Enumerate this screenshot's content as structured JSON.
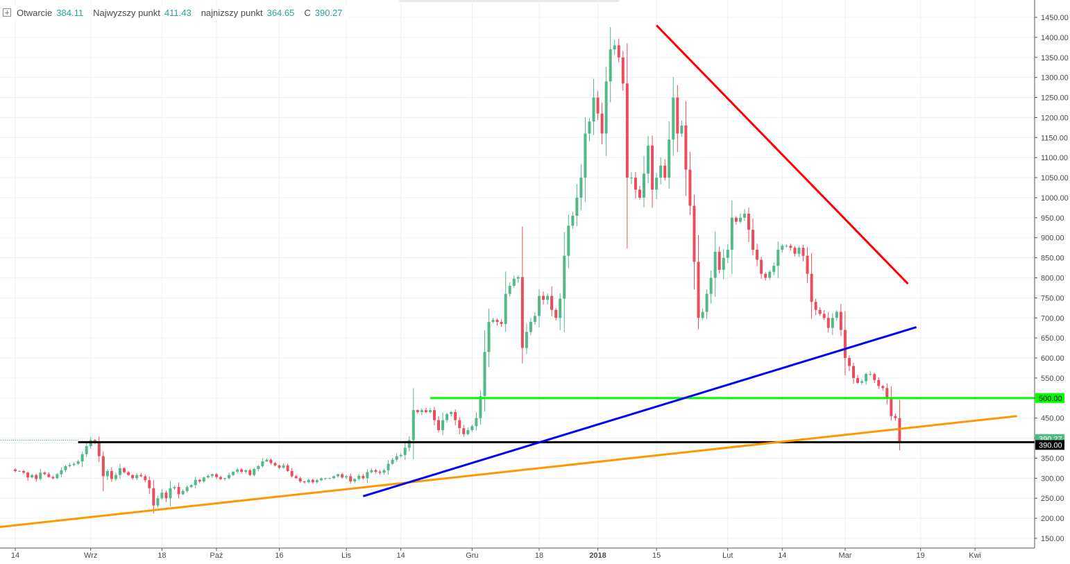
{
  "legend": {
    "open_label": "Otwarcie",
    "open_value": "384.11",
    "high_label": "Najwyzszy punkt",
    "high_value": "411.43",
    "low_label": "najnizszy punkt",
    "low_value": "364.65",
    "close_label": "C",
    "close_value": "390.27"
  },
  "chart_data": {
    "type": "candlestick",
    "y_axis": {
      "min": 125,
      "max": 1470,
      "ticks": [
        150,
        200,
        250,
        300,
        350,
        400,
        450,
        500,
        550,
        600,
        650,
        700,
        750,
        800,
        850,
        900,
        950,
        1000,
        1050,
        1100,
        1150,
        1200,
        1250,
        1300,
        1350,
        1400,
        1450
      ],
      "tick_labels": [
        "150.00",
        "200.00",
        "250.00",
        "300.00",
        "350.00",
        "400.00",
        "450.00",
        "500.00",
        "550.00",
        "600.00",
        "650.00",
        "700.00",
        "750.00",
        "800.00",
        "850.00",
        "900.00",
        "950.00",
        "1000.00",
        "1050.00",
        "1100.00",
        "1150.00",
        "1200.00",
        "1250.00",
        "1300.00",
        "1350.00",
        "1400.00",
        "1450.00"
      ]
    },
    "x_axis": {
      "labels": [
        {
          "text": "14",
          "day": 0,
          "bold": false
        },
        {
          "text": "Wrz",
          "day": 18,
          "bold": false
        },
        {
          "text": "18",
          "day": 35,
          "bold": false
        },
        {
          "text": "Paź",
          "day": 48,
          "bold": false
        },
        {
          "text": "16",
          "day": 63,
          "bold": false
        },
        {
          "text": "Lis",
          "day": 79,
          "bold": false
        },
        {
          "text": "14",
          "day": 92,
          "bold": false
        },
        {
          "text": "Gru",
          "day": 109,
          "bold": false
        },
        {
          "text": "18",
          "day": 125,
          "bold": false
        },
        {
          "text": "2018",
          "day": 139,
          "bold": true
        },
        {
          "text": "15",
          "day": 153,
          "bold": false
        },
        {
          "text": "Lut",
          "day": 170,
          "bold": false
        },
        {
          "text": "14",
          "day": 183,
          "bold": false
        },
        {
          "text": "Mar",
          "day": 198,
          "bold": false
        },
        {
          "text": "19",
          "day": 216,
          "bold": false
        },
        {
          "text": "Kwi",
          "day": 229,
          "bold": false
        }
      ]
    },
    "closes": [
      318,
      318,
      314,
      302,
      308,
      298,
      314,
      310,
      303,
      300,
      310,
      320,
      330,
      333,
      336,
      342,
      360,
      380,
      395,
      390,
      355,
      305,
      318,
      298,
      308,
      325,
      315,
      308,
      300,
      308,
      305,
      295,
      275,
      232,
      250,
      264,
      250,
      275,
      278,
      260,
      268,
      278,
      283,
      296,
      292,
      302,
      306,
      310,
      303,
      298,
      300,
      308,
      316,
      322,
      316,
      320,
      308,
      323,
      330,
      342,
      346,
      338,
      332,
      326,
      332,
      318,
      305,
      300,
      292,
      290,
      296,
      290,
      295,
      300,
      300,
      300,
      305,
      310,
      302,
      305,
      292,
      298,
      306,
      300,
      315,
      320,
      316,
      314,
      320,
      336,
      346,
      355,
      358,
      376,
      395,
      470,
      465,
      470,
      465,
      470,
      445,
      420,
      445,
      460,
      465,
      445,
      425,
      410,
      420,
      430,
      450,
      505,
      615,
      690,
      695,
      690,
      685,
      760,
      780,
      798,
      802,
      625,
      665,
      690,
      705,
      755,
      745,
      755,
      720,
      700,
      748,
      855,
      930,
      955,
      1000,
      1050,
      1160,
      1190,
      1250,
      1210,
      1160,
      1290,
      1370,
      1380,
      1350,
      1285,
      1050,
      1050,
      1020,
      1000,
      1060,
      1130,
      1020,
      1050,
      1080,
      1050,
      1145,
      1250,
      1160,
      1180,
      1070,
      980,
      840,
      700,
      715,
      760,
      800,
      865,
      820,
      850,
      870,
      950,
      940,
      950,
      960,
      920,
      870,
      845,
      810,
      800,
      815,
      830,
      870,
      880,
      880,
      875,
      860,
      875,
      855,
      810,
      740,
      720,
      710,
      700,
      675,
      700,
      715,
      670,
      600,
      580,
      550,
      538,
      542,
      560,
      560,
      545,
      530,
      525,
      500,
      455,
      450,
      390
    ]
  },
  "annotations": {
    "close_price_badge": "390.27",
    "level_390_badge": "390.00",
    "level_500_badge": "500.00"
  },
  "colors": {
    "up": "#53b987",
    "down": "#eb4d5c",
    "resistance_trendline": "#ff0000",
    "support_trendline_blue": "#0000ff",
    "support_trendline_orange": "#ff9800",
    "level_500": "#00ff00",
    "level_390": "#000000"
  }
}
